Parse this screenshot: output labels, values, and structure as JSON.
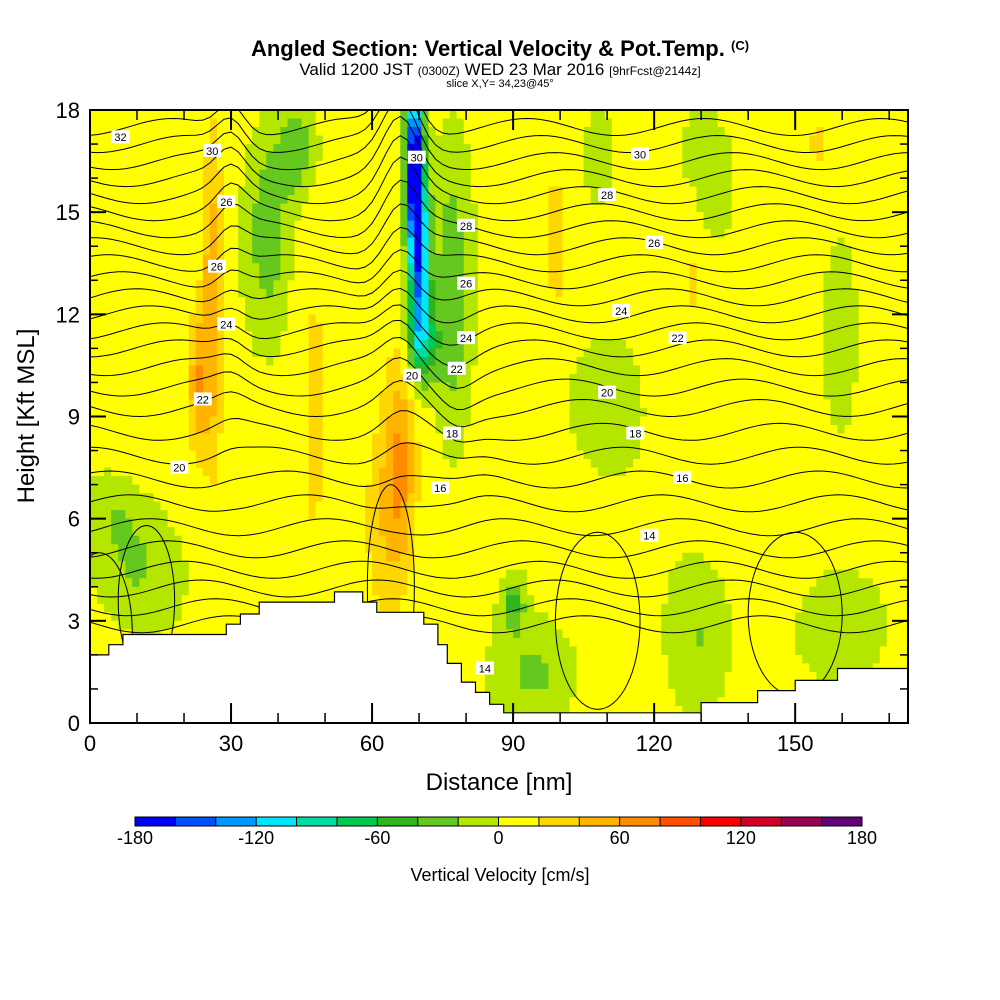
{
  "header": {
    "title": "Angled Section: Vertical Velocity & Pot.Temp.",
    "title_unit": "(C)",
    "valid_main": "Valid 1200 JST",
    "valid_utc": "(0300Z)",
    "valid_date": "WED 23 Mar 2016",
    "valid_fcst": "[9hrFcst@2144z]",
    "slice": "slice X,Y= 34,23@45°"
  },
  "chart_data": {
    "type": "heatmap",
    "xlabel": "Distance [nm]",
    "ylabel": "Height [Kft MSL]",
    "xlim": [
      0,
      174
    ],
    "ylim": [
      0,
      18
    ],
    "x_ticks": [
      0,
      30,
      60,
      90,
      120,
      150
    ],
    "y_ticks": [
      0,
      3,
      6,
      9,
      12,
      15,
      18
    ],
    "colorbar": {
      "label": "Vertical Velocity [cm/s]",
      "range": [
        -180,
        180
      ],
      "ticks": [
        -180,
        -120,
        -60,
        0,
        60,
        120,
        180
      ],
      "colors": [
        "#0000ff",
        "#0050ff",
        "#0096ff",
        "#00e6ff",
        "#00dca0",
        "#00c850",
        "#32b41e",
        "#64c81e",
        "#b4e600",
        "#ffff00",
        "#ffd700",
        "#ffb400",
        "#ff8c00",
        "#ff5000",
        "#ff0000",
        "#d20028",
        "#9b0050",
        "#640078"
      ]
    },
    "terrain_kft": [
      [
        0,
        2.0
      ],
      [
        4,
        2.0
      ],
      [
        4,
        2.3
      ],
      [
        7,
        2.3
      ],
      [
        7,
        2.6
      ],
      [
        29,
        2.6
      ],
      [
        29,
        2.9
      ],
      [
        32,
        2.9
      ],
      [
        32,
        3.2
      ],
      [
        36,
        3.2
      ],
      [
        36,
        3.55
      ],
      [
        52,
        3.55
      ],
      [
        52,
        3.85
      ],
      [
        58,
        3.85
      ],
      [
        58,
        3.55
      ],
      [
        61,
        3.55
      ],
      [
        61,
        3.25
      ],
      [
        71,
        3.25
      ],
      [
        71,
        2.9
      ],
      [
        74,
        2.9
      ],
      [
        74,
        2.3
      ],
      [
        76,
        2.3
      ],
      [
        76,
        1.75
      ],
      [
        79,
        1.75
      ],
      [
        79,
        1.2
      ],
      [
        82,
        1.2
      ],
      [
        82,
        0.9
      ],
      [
        85,
        0.9
      ],
      [
        85,
        0.55
      ],
      [
        88,
        0.55
      ],
      [
        88,
        0.3
      ],
      [
        130,
        0.3
      ],
      [
        130,
        0.6
      ],
      [
        142,
        0.6
      ],
      [
        142,
        0.95
      ],
      [
        150,
        0.95
      ],
      [
        150,
        1.25
      ],
      [
        159,
        1.25
      ],
      [
        159,
        1.6
      ],
      [
        174,
        1.6
      ]
    ],
    "velocity_features": [
      {
        "x": 69,
        "y": 16.5,
        "sx": 1.8,
        "sy": 2.2,
        "w": -200
      },
      {
        "x": 70,
        "y": 13.5,
        "sx": 2.2,
        "sy": 2.5,
        "w": -150
      },
      {
        "x": 71,
        "y": 11.2,
        "sx": 3.5,
        "sy": 1.2,
        "w": -60
      },
      {
        "x": 77,
        "y": 12.5,
        "sx": 4.0,
        "sy": 4.5,
        "w": -45
      },
      {
        "x": 38,
        "y": 14.5,
        "sx": 4.5,
        "sy": 3.0,
        "w": -45
      },
      {
        "x": 44,
        "y": 16.8,
        "sx": 4.0,
        "sy": 1.4,
        "w": -45
      },
      {
        "x": 26,
        "y": 12.5,
        "sx": 2.2,
        "sy": 4.5,
        "w": 55
      },
      {
        "x": 23,
        "y": 10.0,
        "sx": 2.0,
        "sy": 2.0,
        "w": 50
      },
      {
        "x": 66,
        "y": 7.5,
        "sx": 3.0,
        "sy": 3.0,
        "w": 55
      },
      {
        "x": 62,
        "y": 6.0,
        "sx": 4.0,
        "sy": 3.0,
        "w": 30
      },
      {
        "x": 10,
        "y": 4.5,
        "sx": 8.0,
        "sy": 1.8,
        "w": -30
      },
      {
        "x": 5,
        "y": 6.2,
        "sx": 6.0,
        "sy": 1.2,
        "w": -20
      },
      {
        "x": 90,
        "y": 3.5,
        "sx": 2.5,
        "sy": 0.8,
        "w": -50
      },
      {
        "x": 95,
        "y": 1.5,
        "sx": 9.0,
        "sy": 1.5,
        "w": -30
      },
      {
        "x": 130,
        "y": 2.5,
        "sx": 6.0,
        "sy": 2.0,
        "w": -25
      },
      {
        "x": 160,
        "y": 2.8,
        "sx": 10.0,
        "sy": 1.5,
        "w": -25
      },
      {
        "x": 110,
        "y": 9.5,
        "sx": 8.0,
        "sy": 2.5,
        "w": -20
      },
      {
        "x": 108,
        "y": 16.5,
        "sx": 5.0,
        "sy": 2.0,
        "w": -18
      },
      {
        "x": 132,
        "y": 16.0,
        "sx": 6.0,
        "sy": 2.0,
        "w": -18
      },
      {
        "x": 160,
        "y": 12.0,
        "sx": 4.0,
        "sy": 3.0,
        "w": -12
      },
      {
        "x": 48,
        "y": 9.0,
        "sx": 3.0,
        "sy": 4.0,
        "w": 20
      },
      {
        "x": 99,
        "y": 14.0,
        "sx": 2.5,
        "sy": 2.5,
        "w": 20
      },
      {
        "x": 128,
        "y": 13.5,
        "sx": 3.0,
        "sy": 2.5,
        "w": 18
      },
      {
        "x": 155,
        "y": 17.0,
        "sx": 3.0,
        "sy": 1.2,
        "w": 15
      }
    ],
    "isentrope_labels": [
      {
        "text": "32",
        "x": 6.5,
        "y": 17.2
      },
      {
        "text": "30",
        "x": 26,
        "y": 16.8
      },
      {
        "text": "26",
        "x": 29,
        "y": 15.3
      },
      {
        "text": "26",
        "x": 27,
        "y": 13.4
      },
      {
        "text": "24",
        "x": 29,
        "y": 11.7
      },
      {
        "text": "22",
        "x": 24,
        "y": 9.5
      },
      {
        "text": "20",
        "x": 19,
        "y": 7.5
      },
      {
        "text": "30",
        "x": 69.5,
        "y": 16.6
      },
      {
        "text": "28",
        "x": 80,
        "y": 14.6
      },
      {
        "text": "26",
        "x": 80,
        "y": 12.9
      },
      {
        "text": "24",
        "x": 80,
        "y": 11.3
      },
      {
        "text": "22",
        "x": 78,
        "y": 10.4
      },
      {
        "text": "20",
        "x": 68.5,
        "y": 10.2
      },
      {
        "text": "18",
        "x": 77,
        "y": 8.5
      },
      {
        "text": "16",
        "x": 74.5,
        "y": 6.9
      },
      {
        "text": "14",
        "x": 84,
        "y": 1.6
      },
      {
        "text": "30",
        "x": 117,
        "y": 16.7
      },
      {
        "text": "28",
        "x": 110,
        "y": 15.5
      },
      {
        "text": "26",
        "x": 120,
        "y": 14.1
      },
      {
        "text": "24",
        "x": 113,
        "y": 12.1
      },
      {
        "text": "22",
        "x": 125,
        "y": 11.3
      },
      {
        "text": "20",
        "x": 110,
        "y": 9.7
      },
      {
        "text": "18",
        "x": 116,
        "y": 8.5
      },
      {
        "text": "16",
        "x": 126,
        "y": 7.2
      },
      {
        "text": "14",
        "x": 119,
        "y": 5.5
      }
    ]
  }
}
